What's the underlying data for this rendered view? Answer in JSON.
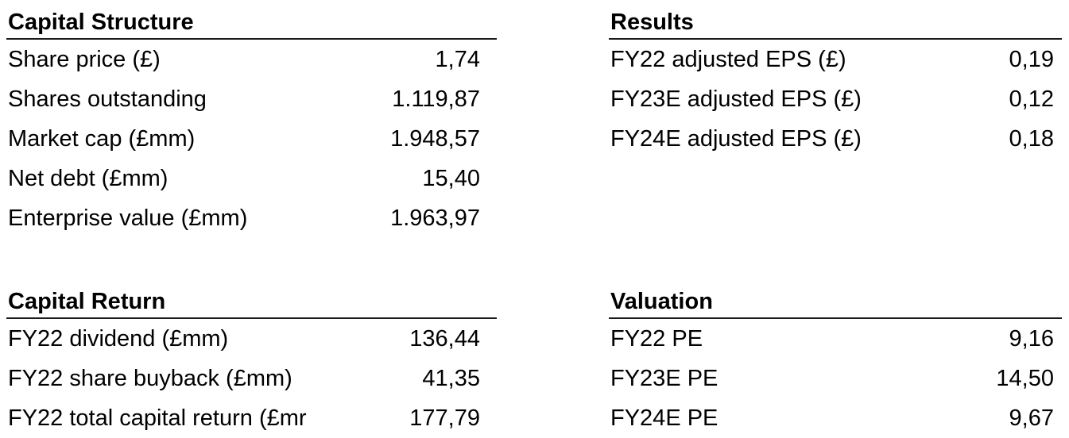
{
  "capital_structure": {
    "title": "Capital Structure",
    "rows": [
      {
        "label": "Share price (£)",
        "value": "1,74"
      },
      {
        "label": "Shares outstanding",
        "value": "1.119,87"
      },
      {
        "label": "Market cap (£mm)",
        "value": "1.948,57"
      },
      {
        "label": "Net debt (£mm)",
        "value": "15,40"
      },
      {
        "label": "Enterprise value (£mm)",
        "value": "1.963,97"
      }
    ]
  },
  "results": {
    "title": "Results",
    "rows": [
      {
        "label": "FY22 adjusted EPS (£)",
        "value": "0,19"
      },
      {
        "label": "FY23E adjusted EPS (£)",
        "value": "0,12"
      },
      {
        "label": "FY24E adjusted EPS (£)",
        "value": "0,18"
      }
    ]
  },
  "capital_return": {
    "title": "Capital Return",
    "rows": [
      {
        "label": "FY22 dividend (£mm)",
        "value": "136,44"
      },
      {
        "label": "FY22 share buyback (£mm)",
        "value": "41,35"
      },
      {
        "label": "FY22 total capital return (£mr",
        "value": "177,79"
      }
    ]
  },
  "valuation": {
    "title": "Valuation",
    "rows": [
      {
        "label": "FY22 PE",
        "value": "9,16"
      },
      {
        "label": "FY23E PE",
        "value": "14,50"
      },
      {
        "label": "FY24E PE",
        "value": "9,67"
      }
    ]
  }
}
